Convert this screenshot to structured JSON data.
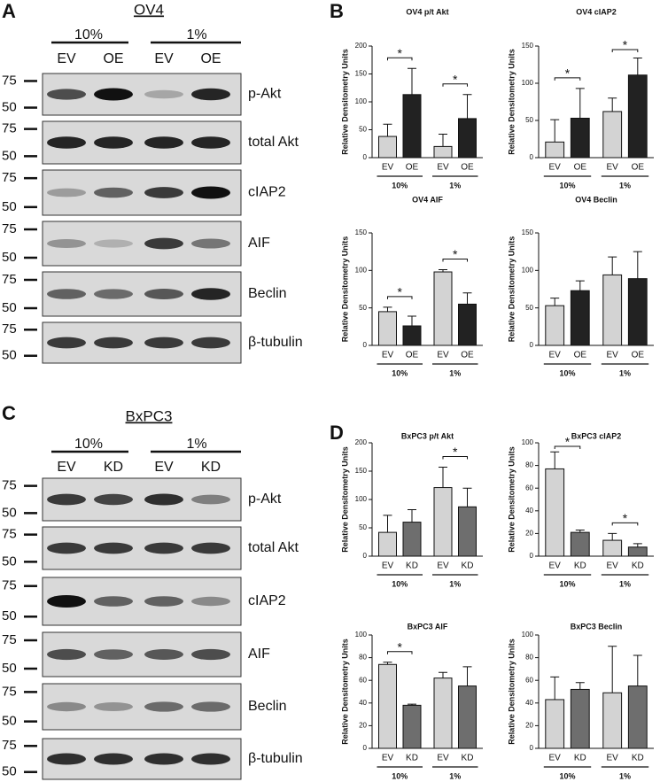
{
  "panel_labels": [
    "A",
    "B",
    "C",
    "D"
  ],
  "blots": [
    {
      "title": "OV4",
      "groups": [
        "10%",
        "1%"
      ],
      "lanes": [
        "EV",
        "OE",
        "EV",
        "OE"
      ],
      "rows": [
        {
          "label": "p-Akt",
          "markers": [
            "75",
            "50"
          ]
        },
        {
          "label": "total Akt",
          "markers": [
            "75",
            "50"
          ]
        },
        {
          "label": "cIAP2",
          "markers": [
            "75",
            "50"
          ]
        },
        {
          "label": "AIF",
          "markers": [
            "75",
            "50"
          ]
        },
        {
          "label": "Beclin",
          "markers": [
            "75",
            "50"
          ]
        },
        {
          "label": "β-tubulin",
          "markers": [
            "75",
            "50"
          ]
        }
      ]
    },
    {
      "title": "BxPC3",
      "groups": [
        "10%",
        "1%"
      ],
      "lanes": [
        "EV",
        "KD",
        "EV",
        "KD"
      ],
      "rows": [
        {
          "label": "p-Akt",
          "markers": [
            "75",
            "50"
          ]
        },
        {
          "label": "total Akt",
          "markers": [
            "75",
            "50"
          ]
        },
        {
          "label": "cIAP2",
          "markers": [
            "75",
            "50"
          ]
        },
        {
          "label": "AIF",
          "markers": [
            "75",
            "50"
          ]
        },
        {
          "label": "Beclin",
          "markers": [
            "75",
            "50"
          ]
        },
        {
          "label": "β-tubulin",
          "markers": [
            "75",
            "50"
          ]
        }
      ]
    }
  ],
  "chart_data": [
    {
      "type": "bar",
      "title": "OV4 p/t Akt",
      "ylabel": "Relative Densitometry Units",
      "categories": [
        "EV",
        "OE",
        "EV",
        "OE"
      ],
      "groups": [
        "10%",
        "1%"
      ],
      "values": [
        38,
        113,
        20,
        70
      ],
      "errors": [
        22,
        47,
        22,
        43
      ],
      "colors": [
        "#d3d3d3",
        "#222222",
        "#d3d3d3",
        "#222222"
      ],
      "ylim": [
        0,
        200
      ],
      "yticks": [
        0,
        50,
        100,
        150,
        200
      ],
      "group_marks": [
        "*",
        "*"
      ]
    },
    {
      "type": "bar",
      "title": "OV4 cIAP2",
      "ylabel": "Relative Densitometry Units",
      "categories": [
        "EV",
        "OE",
        "EV",
        "OE"
      ],
      "groups": [
        "10%",
        "1%"
      ],
      "values": [
        21,
        53,
        62,
        111
      ],
      "errors": [
        30,
        40,
        18,
        23
      ],
      "colors": [
        "#d3d3d3",
        "#222222",
        "#d3d3d3",
        "#222222"
      ],
      "ylim": [
        0,
        150
      ],
      "yticks": [
        0,
        50,
        100,
        150
      ],
      "group_marks": [
        "*",
        "*"
      ]
    },
    {
      "type": "bar",
      "title": "OV4 AIF",
      "ylabel": "Relative Densitometry Units",
      "categories": [
        "EV",
        "OE",
        "EV",
        "OE"
      ],
      "groups": [
        "10%",
        "1%"
      ],
      "values": [
        45,
        26,
        98,
        55
      ],
      "errors": [
        6,
        13,
        3,
        15
      ],
      "colors": [
        "#d3d3d3",
        "#222222",
        "#d3d3d3",
        "#222222"
      ],
      "ylim": [
        0,
        150
      ],
      "yticks": [
        0,
        50,
        100,
        150
      ],
      "group_marks": [
        "*",
        "*"
      ]
    },
    {
      "type": "bar",
      "title": "OV4 Beclin",
      "ylabel": "Relative Densitometry Units",
      "categories": [
        "EV",
        "OE",
        "EV",
        "OE"
      ],
      "groups": [
        "10%",
        "1%"
      ],
      "values": [
        53,
        73,
        94,
        89
      ],
      "errors": [
        10,
        13,
        24,
        36
      ],
      "colors": [
        "#d3d3d3",
        "#222222",
        "#d3d3d3",
        "#222222"
      ],
      "ylim": [
        0,
        150
      ],
      "yticks": [
        0,
        50,
        100,
        150
      ],
      "group_marks": [
        null,
        null
      ]
    },
    {
      "type": "bar",
      "title": "BxPC3 p/t Akt",
      "ylabel": "Relative Densitometry Units",
      "categories": [
        "EV",
        "KD",
        "EV",
        "KD"
      ],
      "groups": [
        "10%",
        "1%"
      ],
      "values": [
        42,
        60,
        121,
        87
      ],
      "errors": [
        30,
        22,
        36,
        33
      ],
      "colors": [
        "#d3d3d3",
        "#6e6e6e",
        "#d3d3d3",
        "#6e6e6e"
      ],
      "ylim": [
        0,
        200
      ],
      "yticks": [
        0,
        50,
        100,
        150,
        200
      ],
      "group_marks": [
        null,
        "*"
      ]
    },
    {
      "type": "bar",
      "title": "BxPC3 cIAP2",
      "ylabel": "Relative Densitometry Units",
      "categories": [
        "EV",
        "KD",
        "EV",
        "KD"
      ],
      "groups": [
        "10%",
        "1%"
      ],
      "values": [
        77,
        21,
        14,
        8
      ],
      "errors": [
        15,
        2,
        6,
        3
      ],
      "colors": [
        "#d3d3d3",
        "#6e6e6e",
        "#d3d3d3",
        "#6e6e6e"
      ],
      "ylim": [
        0,
        100
      ],
      "yticks": [
        0,
        20,
        40,
        60,
        80,
        100
      ],
      "group_marks": [
        "*",
        "*"
      ]
    },
    {
      "type": "bar",
      "title": "BxPC3 AIF",
      "ylabel": "Relative Densitometry Units",
      "categories": [
        "EV",
        "KD",
        "EV",
        "KD"
      ],
      "groups": [
        "10%",
        "1%"
      ],
      "values": [
        74,
        38,
        62,
        55
      ],
      "errors": [
        2,
        1,
        5,
        17
      ],
      "colors": [
        "#d3d3d3",
        "#6e6e6e",
        "#d3d3d3",
        "#6e6e6e"
      ],
      "ylim": [
        0,
        100
      ],
      "yticks": [
        0,
        20,
        40,
        60,
        80,
        100
      ],
      "group_marks": [
        "*",
        null
      ]
    },
    {
      "type": "bar",
      "title": "BxPC3 Beclin",
      "ylabel": "Relative Densitometry Units",
      "categories": [
        "EV",
        "KD",
        "EV",
        "KD"
      ],
      "groups": [
        "10%",
        "1%"
      ],
      "values": [
        43,
        52,
        49,
        55
      ],
      "errors": [
        20,
        6,
        41,
        27
      ],
      "colors": [
        "#d3d3d3",
        "#6e6e6e",
        "#d3d3d3",
        "#6e6e6e"
      ],
      "ylim": [
        0,
        100
      ],
      "yticks": [
        0,
        20,
        40,
        60,
        80,
        100
      ],
      "group_marks": [
        null,
        null
      ]
    }
  ]
}
